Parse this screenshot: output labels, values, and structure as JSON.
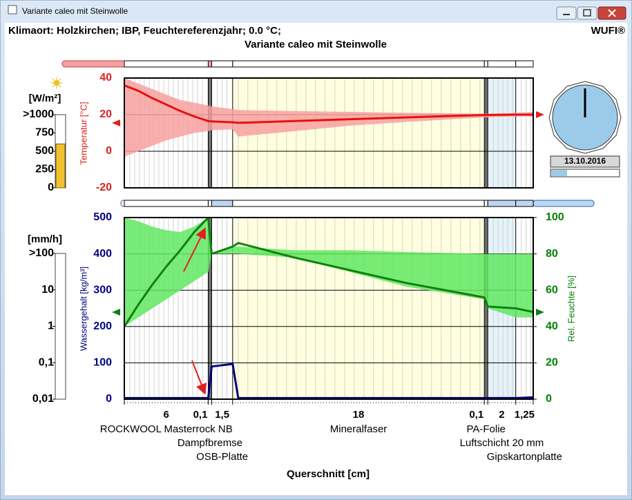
{
  "window": {
    "title": "Variante caleo mit Steinwolle"
  },
  "header": {
    "location": "Klimaort: Holzkirchen; IBP, Feuchtereferenzjahr; 0.0 °C;",
    "brand": "WUFI®"
  },
  "layers": [
    {
      "name": "ROCKWOOL Masterrock NB",
      "thickness": 6,
      "color": "#ffffff"
    },
    {
      "name": "Dampfbremse",
      "thickness": {
        "value": 0.1,
        "label": "0,1"
      },
      "color": "#707070"
    },
    {
      "name": "OSB-Platte",
      "thickness": {
        "value": 1.5,
        "label": "1,5"
      },
      "color": "#ffffff"
    },
    {
      "name": "Mineralfaser",
      "thickness": 18,
      "color": "#ffffe0"
    },
    {
      "name": "PA-Folie",
      "thickness": {
        "value": 0.1,
        "label": "0,1"
      },
      "color": "#707070"
    },
    {
      "name": "Luftschicht 20 mm",
      "thickness": 2,
      "color": "#e4f3fa"
    },
    {
      "name": "Gipskartonplatte",
      "thickness": {
        "value": 1.25,
        "label": "1,25"
      },
      "color": "#ffffff"
    }
  ],
  "chart_data": [
    {
      "type": "line",
      "title": "Variante caleo mit Steinwolle",
      "y_label": "Temperatur [°C]",
      "ylim": [
        -20,
        40
      ],
      "yticks": [
        -20,
        0,
        20,
        40
      ],
      "axis_color": "#e02020",
      "x": [
        0,
        1,
        2,
        3,
        4,
        5,
        6,
        6.1,
        7.6,
        8,
        12,
        16,
        20,
        25.6,
        25.7,
        27.7,
        28.95
      ],
      "band": {
        "color": "#f8a0a0",
        "upper": [
          40,
          37,
          34,
          31,
          28,
          26.5,
          25,
          24.5,
          23,
          22.5,
          22,
          21.5,
          21,
          20.5,
          20.5,
          21,
          21.5
        ],
        "lower": [
          -3,
          0,
          3,
          6,
          8,
          10,
          11,
          11.5,
          12,
          8,
          11,
          14,
          16,
          18.5,
          18.5,
          19,
          19
        ]
      },
      "series": [
        {
          "color": "#e81010",
          "values": [
            36,
            33,
            29,
            25.5,
            22,
            19,
            16.5,
            16.3,
            15.8,
            15.5,
            16.5,
            17.5,
            18.5,
            19.8,
            19.8,
            20,
            20
          ]
        }
      ]
    },
    {
      "type": "line",
      "y_label": "Wassergehalt [kg/m³]",
      "y2_label": "Rel. Feuchte [%]",
      "x_label": "Querschnitt [cm]",
      "ylim": [
        0,
        500
      ],
      "yticks": [
        0,
        100,
        200,
        300,
        400,
        500
      ],
      "axis_color": "#000080",
      "y2lim": [
        0,
        100
      ],
      "y2ticks": [
        0,
        20,
        40,
        60,
        80,
        100
      ],
      "axis2_color": "#008000",
      "x": [
        0,
        1,
        2,
        3,
        4,
        5,
        6,
        6.1,
        7.6,
        8,
        12,
        16,
        20,
        25.6,
        25.7,
        27.7,
        28.95
      ],
      "band": {
        "color": "#60e860",
        "axis": "y2",
        "upper": [
          100,
          98,
          95,
          93,
          92,
          95,
          100,
          80,
          84,
          84,
          82,
          82,
          81,
          80,
          80,
          80,
          80
        ],
        "lower": [
          40,
          45,
          50,
          55,
          60,
          65,
          70,
          80,
          80,
          80,
          78,
          70,
          62,
          55,
          50,
          45,
          45
        ]
      },
      "series": [
        {
          "color": "#000080",
          "x": [
            0,
            6,
            6.1,
            7.6,
            8,
            25.6,
            25.7,
            27.7,
            28.95
          ],
          "values": [
            3,
            3,
            90,
            97,
            3,
            3,
            3,
            3,
            5
          ]
        },
        {
          "color": "#108010",
          "axis": "y2",
          "values": [
            40,
            52,
            63,
            73,
            82,
            92,
            100,
            80,
            84,
            86,
            78,
            71,
            64,
            56,
            51,
            50,
            48
          ]
        }
      ]
    },
    {
      "type": "bar",
      "y_label": "[W/m²]",
      "ylim": [
        0,
        1000
      ],
      "yticks": [
        0,
        250,
        500,
        750,
        {
          "value": 1000,
          "label": ">1000"
        }
      ],
      "values": [
        600
      ],
      "color": "#f0c030"
    },
    {
      "type": "bar",
      "y_label": "[mm/h]",
      "log": true,
      "ylim": [
        0.01,
        100
      ],
      "yticks": [
        {
          "value": 0.01,
          "label": "0,01"
        },
        {
          "value": 0.1,
          "label": "0,1"
        },
        1,
        10,
        {
          "value": 100,
          "label": ">100"
        }
      ]
    }
  ],
  "clock": {
    "date": "13.10.2016"
  }
}
